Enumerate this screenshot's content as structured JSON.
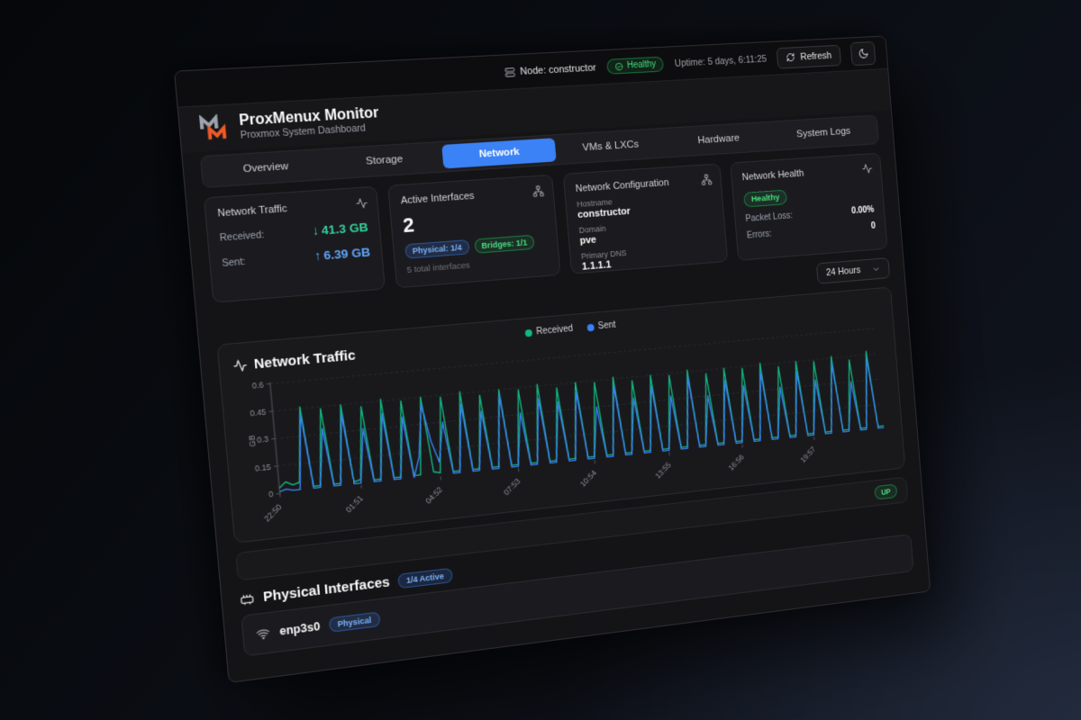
{
  "topbar": {
    "node_label": "Node: constructor",
    "health_status": "Healthy",
    "uptime": "Uptime: 5 days, 6:11:25",
    "refresh_label": "Refresh"
  },
  "header": {
    "title": "ProxMenux Monitor",
    "subtitle": "Proxmox System Dashboard"
  },
  "tabs": [
    {
      "label": "Overview",
      "active": false
    },
    {
      "label": "Storage",
      "active": false
    },
    {
      "label": "Network",
      "active": true
    },
    {
      "label": "VMs & LXCs",
      "active": false
    },
    {
      "label": "Hardware",
      "active": false
    },
    {
      "label": "System Logs",
      "active": false
    }
  ],
  "cards": {
    "traffic": {
      "title": "Network Traffic",
      "received_label": "Received:",
      "received_arrow": "↓",
      "received_value": "41.3 GB",
      "sent_label": "Sent:",
      "sent_arrow": "↑",
      "sent_value": "6.39 GB"
    },
    "interfaces": {
      "title": "Active Interfaces",
      "count": "2",
      "physical_badge": "Physical: 1/4",
      "bridges_badge": "Bridges: 1/1",
      "total": "5 total interfaces"
    },
    "config": {
      "title": "Network Configuration",
      "hostname_label": "Hostname",
      "hostname": "constructor",
      "domain_label": "Domain",
      "domain": "pve",
      "dns_label": "Primary DNS",
      "dns": "1.1.1.1"
    },
    "health": {
      "title": "Network Health",
      "status": "Healthy",
      "packet_loss_label": "Packet Loss:",
      "packet_loss_value": "0.00%",
      "errors_label": "Errors:",
      "errors_value": "0"
    }
  },
  "time_range": {
    "selected": "24 Hours"
  },
  "chart_data": {
    "type": "line",
    "title": "Network Traffic",
    "ylabel": "GB",
    "ylim": [
      0,
      0.6
    ],
    "yticks": [
      0,
      0.15,
      0.3,
      0.45,
      0.6
    ],
    "ytick_labels": [
      "0",
      "0.15",
      "0.3",
      "0.45",
      "0.6"
    ],
    "x_tick_labels": [
      "22:50",
      "01:51",
      "04:52",
      "07:53",
      "10:54",
      "13:55",
      "16:56",
      "19:57"
    ],
    "legend_position": "top-center",
    "grid": "dashed-horizontal",
    "series": [
      {
        "name": "Received",
        "color": "#10b981",
        "values": [
          0.03,
          0.06,
          0.04,
          0.05,
          0.46,
          0.02,
          0.02,
          0.44,
          0.02,
          0.02,
          0.45,
          0.02,
          0.03,
          0.43,
          0.02,
          0.02,
          0.46,
          0.02,
          0.02,
          0.44,
          0.02,
          0.02,
          0.45,
          0.03,
          0.02,
          0.44,
          0.02,
          0.02,
          0.46,
          0.02,
          0.02,
          0.43,
          0.02,
          0.02,
          0.45,
          0.02,
          0.02,
          0.44,
          0.02,
          0.02,
          0.46,
          0.02,
          0.02,
          0.43,
          0.02,
          0.02,
          0.45,
          0.02,
          0.02,
          0.44,
          0.02,
          0.02,
          0.46,
          0.02,
          0.02,
          0.43,
          0.02,
          0.02,
          0.45,
          0.02,
          0.02,
          0.44,
          0.02,
          0.02,
          0.46,
          0.02,
          0.02,
          0.43,
          0.02,
          0.02,
          0.45,
          0.02,
          0.02,
          0.44,
          0.02,
          0.02,
          0.46,
          0.02,
          0.02,
          0.43,
          0.02,
          0.02,
          0.45,
          0.02,
          0.02,
          0.44,
          0.02,
          0.02,
          0.46,
          0.02,
          0.02,
          0.43,
          0.02,
          0.02,
          0.47,
          0.02,
          0.02
        ]
      },
      {
        "name": "Sent",
        "color": "#3b82f6",
        "values": [
          0.01,
          0.02,
          0.01,
          0.01,
          0.42,
          0.01,
          0.01,
          0.33,
          0.01,
          0.01,
          0.4,
          0.01,
          0.01,
          0.31,
          0.01,
          0.01,
          0.38,
          0.01,
          0.01,
          0.35,
          0.01,
          0.12,
          0.41,
          0.2,
          0.08,
          0.3,
          0.01,
          0.01,
          0.39,
          0.01,
          0.01,
          0.34,
          0.01,
          0.01,
          0.42,
          0.01,
          0.01,
          0.31,
          0.01,
          0.01,
          0.38,
          0.01,
          0.01,
          0.35,
          0.01,
          0.01,
          0.4,
          0.01,
          0.01,
          0.3,
          0.01,
          0.01,
          0.41,
          0.01,
          0.01,
          0.33,
          0.01,
          0.01,
          0.39,
          0.01,
          0.01,
          0.32,
          0.01,
          0.01,
          0.42,
          0.01,
          0.01,
          0.3,
          0.01,
          0.01,
          0.38,
          0.01,
          0.01,
          0.34,
          0.01,
          0.01,
          0.41,
          0.01,
          0.01,
          0.31,
          0.01,
          0.01,
          0.39,
          0.01,
          0.01,
          0.33,
          0.01,
          0.01,
          0.42,
          0.01,
          0.01,
          0.3,
          0.01,
          0.01,
          0.43,
          0.01,
          0.01
        ]
      }
    ]
  },
  "status_row": {
    "badge": "UP"
  },
  "physical_section": {
    "title": "Physical Interfaces",
    "badge": "1/4 Active"
  },
  "interface_row": {
    "name": "enp3s0",
    "badge": "Physical"
  },
  "colors": {
    "accent": "#3b82f6",
    "success": "#22c55e",
    "received": "#10b981",
    "sent": "#3b82f6",
    "logo_orange": "#f05a28",
    "logo_gray": "#9ca3af"
  }
}
